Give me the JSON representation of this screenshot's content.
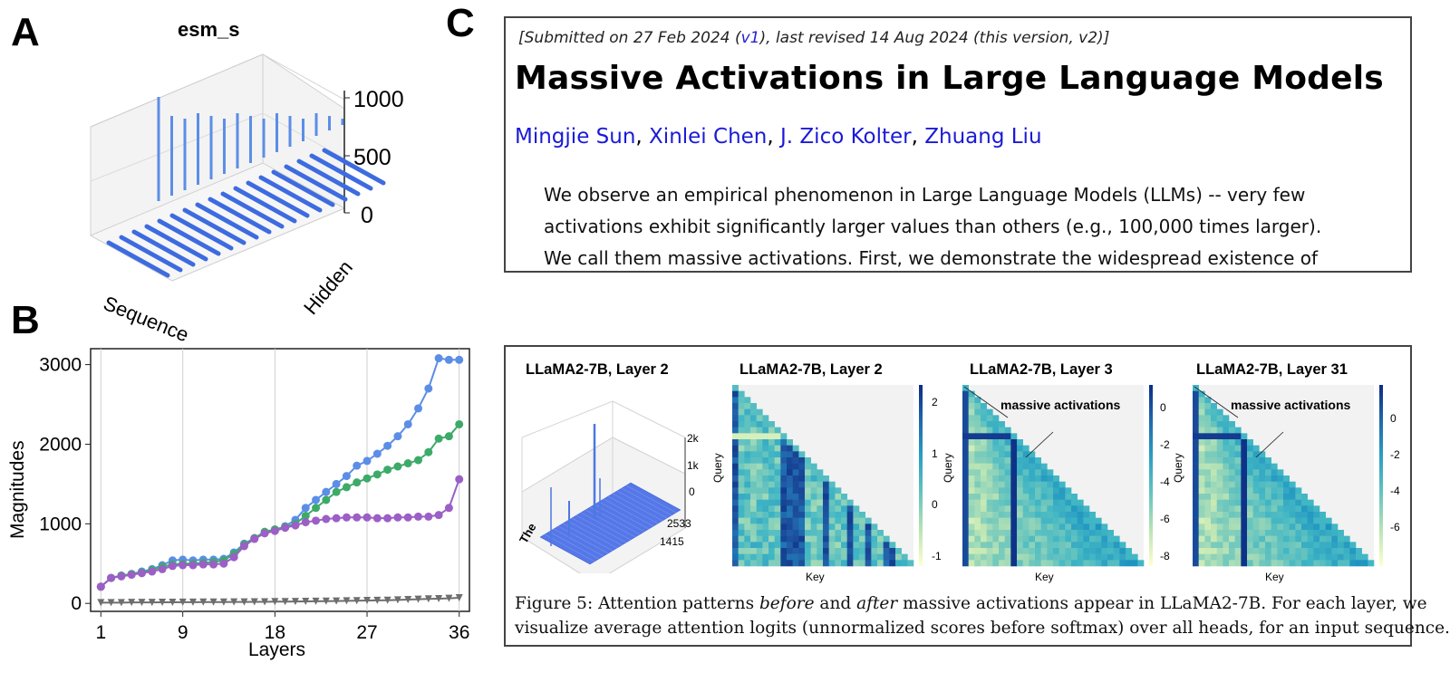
{
  "panels": {
    "a": "A",
    "b": "B",
    "c": "C"
  },
  "panel_a": {
    "title": "esm_s",
    "z_ticks": [
      "1000",
      "500",
      "0"
    ],
    "axis_sequence": "Sequence",
    "axis_hidden": "Hidden"
  },
  "colors": {
    "blue": "#5b8ee6",
    "green": "#3daa6a",
    "purple": "#9b5fc6",
    "gray": "#6e6e6e",
    "bar_blue": "#3d6be0"
  },
  "chart_data": {
    "type": "line",
    "xlabel": "Layers",
    "ylabel": "Magnitudes",
    "x": [
      1,
      2,
      3,
      4,
      5,
      6,
      7,
      8,
      9,
      10,
      11,
      12,
      13,
      14,
      15,
      16,
      17,
      18,
      19,
      20,
      21,
      22,
      23,
      24,
      25,
      26,
      27,
      28,
      29,
      30,
      31,
      32,
      33,
      34,
      35,
      36
    ],
    "x_ticks": [
      1,
      9,
      18,
      27,
      36
    ],
    "y_ticks": [
      0,
      1000,
      2000,
      3000
    ],
    "ylim": [
      -100,
      3200
    ],
    "xlim": [
      0,
      37
    ],
    "grid": "vertical",
    "series": [
      {
        "color": "#5b8ee6",
        "marker": "circle",
        "values": [
          210,
          320,
          350,
          370,
          400,
          430,
          480,
          540,
          550,
          540,
          550,
          550,
          560,
          640,
          750,
          820,
          890,
          920,
          970,
          1050,
          1200,
          1300,
          1400,
          1500,
          1600,
          1730,
          1790,
          1880,
          1980,
          2100,
          2250,
          2450,
          2700,
          3080,
          3060,
          3060
        ]
      },
      {
        "color": "#3daa6a",
        "marker": "circle",
        "values": [
          210,
          320,
          350,
          370,
          390,
          420,
          460,
          490,
          500,
          500,
          510,
          520,
          540,
          620,
          740,
          820,
          900,
          930,
          960,
          1000,
          1100,
          1200,
          1300,
          1400,
          1460,
          1520,
          1570,
          1620,
          1680,
          1720,
          1760,
          1800,
          1900,
          2070,
          2100,
          2250
        ]
      },
      {
        "color": "#9b5fc6",
        "marker": "circle",
        "values": [
          210,
          320,
          340,
          360,
          380,
          400,
          430,
          470,
          480,
          480,
          490,
          490,
          500,
          580,
          720,
          810,
          880,
          910,
          950,
          980,
          1020,
          1040,
          1060,
          1070,
          1080,
          1080,
          1080,
          1070,
          1070,
          1080,
          1080,
          1090,
          1090,
          1110,
          1200,
          1560
        ]
      },
      {
        "color": "#6e6e6e",
        "marker": "triangle-down",
        "values": [
          10,
          10,
          10,
          12,
          12,
          12,
          14,
          14,
          15,
          15,
          16,
          16,
          17,
          18,
          18,
          20,
          20,
          22,
          22,
          24,
          25,
          26,
          28,
          30,
          32,
          34,
          36,
          38,
          40,
          44,
          48,
          52,
          56,
          60,
          64,
          70
        ]
      }
    ]
  },
  "paper": {
    "submitted_prefix": "[Submitted on 27 Feb 2024 (",
    "submitted_link": "v1",
    "submitted_suffix": "), last revised 14 Aug 2024 (this version, v2)]",
    "title": "Massive Activations in Large Language Models",
    "authors": [
      "Mingjie Sun",
      "Xinlei Chen",
      "J. Zico Kolter",
      "Zhuang Liu"
    ],
    "author_sep": ", ",
    "abstract_lines": [
      "We observe an empirical phenomenon in Large Language Models (LLMs) -- very few",
      "activations exhibit significantly larger values than others (e.g., 100,000 times larger).",
      "We call them massive activations. First, we demonstrate the widespread existence of"
    ]
  },
  "figure": {
    "subplot_titles": [
      "LLaMA2-7B, Layer 2",
      "LLaMA2-7B, Layer 2",
      "LLaMA2-7B, Layer 3",
      "LLaMA2-7B, Layer 31"
    ],
    "bar3d_ticks": [
      "2k",
      "1k",
      "0"
    ],
    "bar3d_labels": [
      "The",
      "2533",
      "1415"
    ],
    "axis_query": "Query",
    "axis_key": "Key",
    "annotation": "massive activations",
    "colorbar1_ticks": [
      "2",
      "1",
      "0",
      "-1"
    ],
    "colorbar2_ticks": [
      "0",
      "-2",
      "-4",
      "-6",
      "-8"
    ],
    "colorbar3_ticks": [
      "0",
      "-2",
      "-4",
      "-6"
    ],
    "caption_line1_a": "Figure 5: Attention patterns ",
    "caption_line1_b": "before",
    "caption_line1_c": " and ",
    "caption_line1_d": "after",
    "caption_line1_e": " massive activations appear in LLaMA2-7B. For each layer, we",
    "caption_line2": "visualize average attention logits (unnormalized scores before softmax) over all heads, for an input sequence."
  }
}
